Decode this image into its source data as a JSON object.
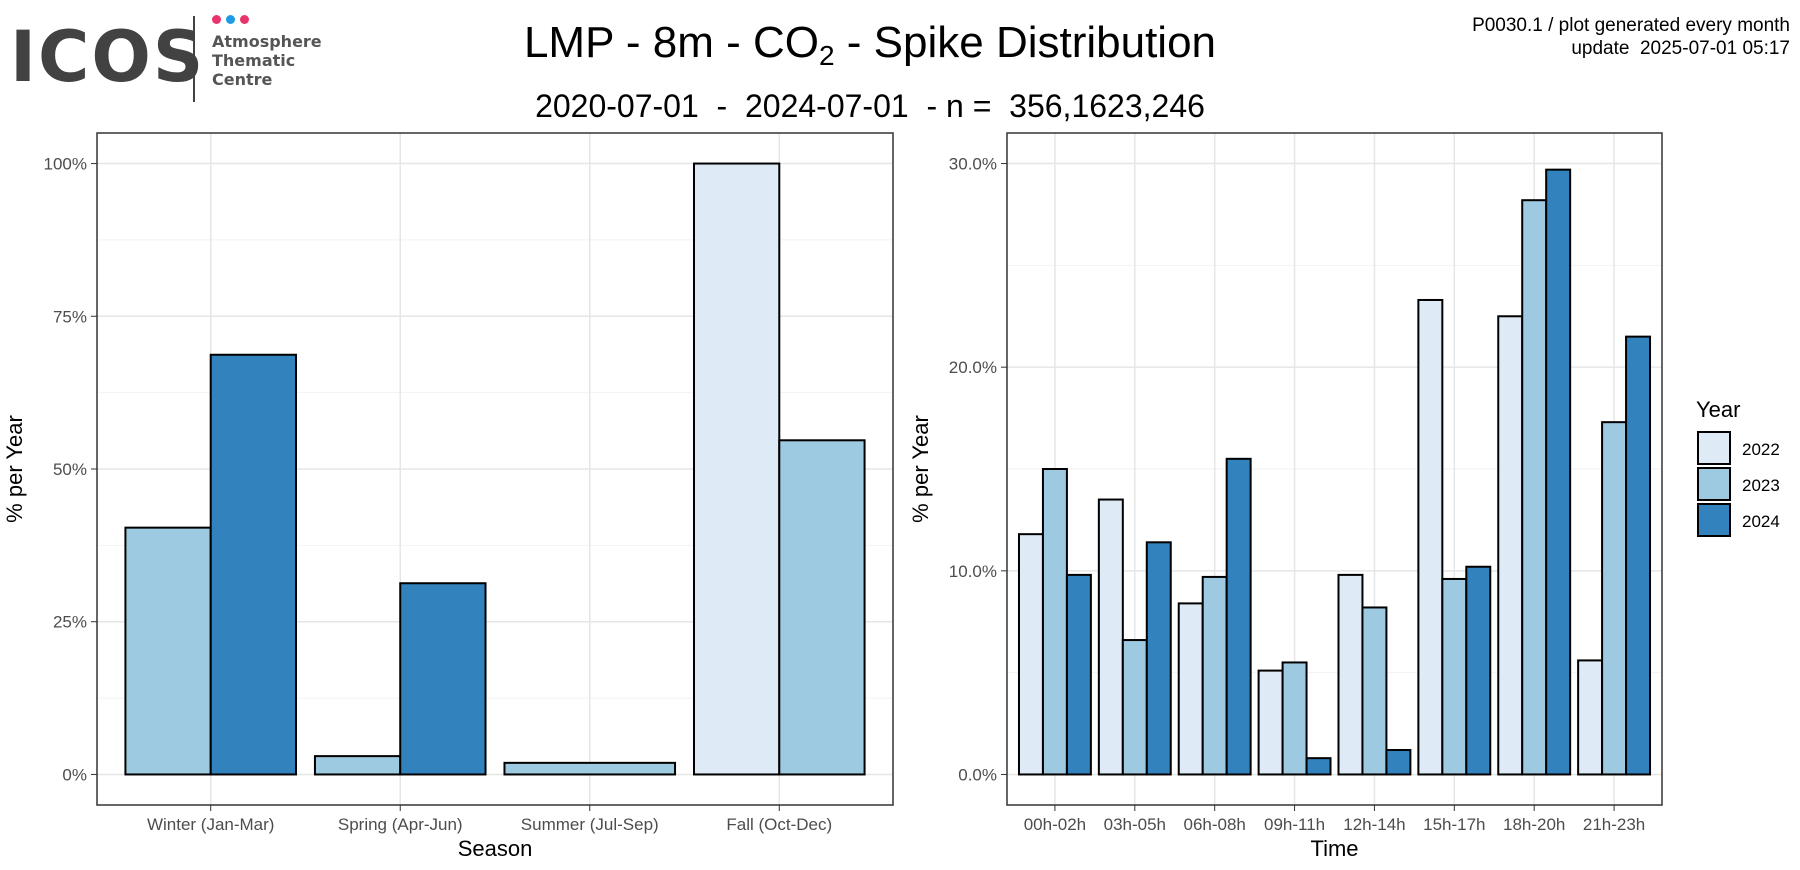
{
  "logo": {
    "word": "ICOS",
    "line1": "Atmosphere",
    "line2": "Thematic",
    "line3": "Centre",
    "dot_colors": [
      "#e8336d",
      "#1e9be6",
      "#e8336d"
    ]
  },
  "header": {
    "title_prefix": "LMP - 8m - CO",
    "title_sub": "2",
    "title_suffix": " - Spike Distribution",
    "subtitle": "2020-07-01  -  2024-07-01  - n =  356,1623,246",
    "meta_line1": "P0030.1 / plot generated every month",
    "meta_line2": "update  2025-07-01 05:17"
  },
  "legend": {
    "title": "Year",
    "entries": [
      {
        "label": "2022",
        "color": "#deebf7"
      },
      {
        "label": "2023",
        "color": "#9ecae1"
      },
      {
        "label": "2024",
        "color": "#3182bd"
      }
    ]
  },
  "chart_data": [
    {
      "type": "bar",
      "xlabel": "Season",
      "ylabel": "% per Year",
      "ylim": [
        0,
        100
      ],
      "yticks": [
        0,
        25,
        50,
        75,
        100
      ],
      "ytick_labels": [
        "0%",
        "25%",
        "50%",
        "75%",
        "100%"
      ],
      "grid": true,
      "categories": [
        "Winter (Jan-Mar)",
        "Spring (Apr-Jun)",
        "Summer (Jul-Sep)",
        "Fall (Oct-Dec)"
      ],
      "series": [
        {
          "name": "2022",
          "color": "#deebf7",
          "values": [
            null,
            null,
            null,
            100
          ]
        },
        {
          "name": "2023",
          "color": "#9ecae1",
          "values": [
            40.4,
            3.0,
            1.9,
            54.7
          ]
        },
        {
          "name": "2024",
          "color": "#3182bd",
          "values": [
            68.7,
            31.3,
            null,
            null
          ]
        }
      ]
    },
    {
      "type": "bar",
      "xlabel": "Time",
      "ylabel": "% per Year",
      "ylim": [
        0,
        30
      ],
      "yticks": [
        0,
        10,
        20,
        30
      ],
      "ytick_labels": [
        "0.0%",
        "10.0%",
        "20.0%",
        "30.0%"
      ],
      "grid": true,
      "categories": [
        "00h-02h",
        "03h-05h",
        "06h-08h",
        "09h-11h",
        "12h-14h",
        "15h-17h",
        "18h-20h",
        "21h-23h"
      ],
      "series": [
        {
          "name": "2022",
          "color": "#deebf7",
          "values": [
            11.8,
            13.5,
            8.4,
            5.1,
            9.8,
            23.3,
            22.5,
            5.6
          ]
        },
        {
          "name": "2023",
          "color": "#9ecae1",
          "values": [
            15.0,
            6.6,
            9.7,
            5.5,
            8.2,
            9.6,
            28.2,
            17.3
          ]
        },
        {
          "name": "2024",
          "color": "#3182bd",
          "values": [
            9.8,
            11.4,
            15.5,
            0.8,
            1.2,
            10.2,
            29.7,
            21.5
          ]
        }
      ]
    }
  ]
}
